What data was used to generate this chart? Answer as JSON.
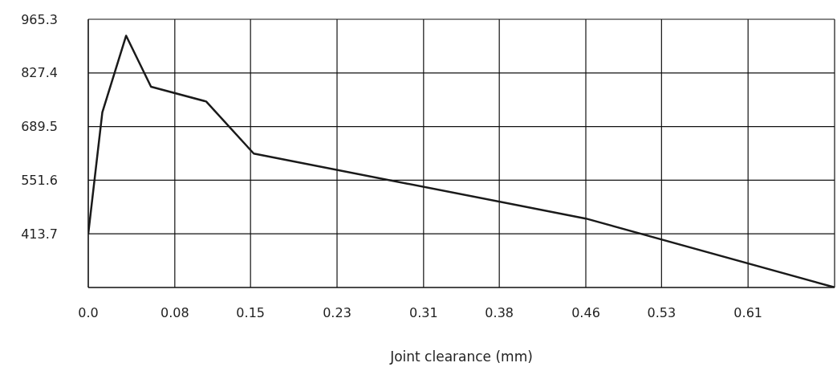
{
  "chart_data": {
    "type": "line",
    "xlabel": "Joint clearance (mm)",
    "x": [
      0,
      0.013,
      0.035,
      0.058,
      0.109,
      0.153,
      0.46,
      0.69
    ],
    "series": [
      {
        "color": "#1a1a1a",
        "values": [
          414,
          726,
          923,
          792,
          754,
          620,
          453,
          276
        ]
      }
    ],
    "xlim": [
      0,
      0.69
    ],
    "xticks": [
      {
        "value": 0,
        "label": "0.0"
      },
      0.08,
      0.15,
      0.23,
      0.31,
      0.38,
      0.46,
      0.53,
      0.61,
      {
        "value": 0.69,
        "label": null
      }
    ],
    "ylim": [
      275.8,
      965.3
    ],
    "yticks": [
      {
        "value": 275.8,
        "label": null
      },
      413.7,
      551.6,
      689.5,
      827.4,
      965.3
    ],
    "grid": true,
    "marker": "none",
    "line_style": "solid"
  }
}
